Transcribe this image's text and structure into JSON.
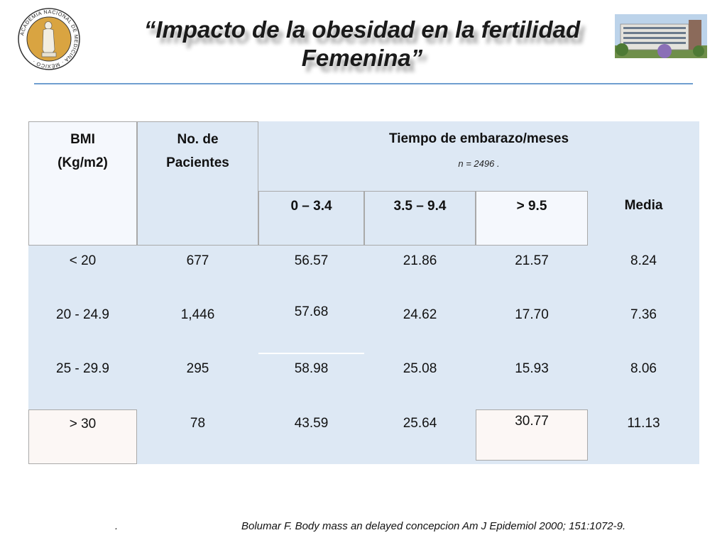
{
  "header": {
    "title_line1": "“Impacto de la obesidad en la fertilidad",
    "title_line2": "Femenina”",
    "logo_text": "ACADEMIA NACIONAL DE MEDICINA · MÉXICO ·"
  },
  "table": {
    "col_bmi": "BMI",
    "col_bmi_unit": "(Kg/m2)",
    "col_patients_1": "No. de",
    "col_patients_2": "Pacientes",
    "col_time": "Tiempo de embarazo/meses",
    "n_note": "n =  2496 .",
    "sub_1": "0 – 3.4",
    "sub_2": "3.5 – 9.4",
    "sub_3": "> 9.5",
    "sub_4": "Media",
    "rows": [
      {
        "bmi": "< 20",
        "patients": "677",
        "c1": "56.57",
        "c2": "21.86",
        "c3": "21.57",
        "mean": "8.24"
      },
      {
        "bmi": "20 - 24.9",
        "patients": "1,446",
        "c1": "57.68",
        "c2": "24.62",
        "c3": "17.70",
        "mean": "7.36"
      },
      {
        "bmi": "25 - 29.9",
        "patients": "295",
        "c1": "58.98",
        "c2": "25.08",
        "c3": "15.93",
        "mean": "8.06"
      },
      {
        "bmi": "> 30",
        "patients": "78",
        "c1": "43.59",
        "c2": "25.64",
        "c3": "30.77",
        "mean": "11.13"
      }
    ]
  },
  "footer": {
    "dot": ".",
    "citation": "Bolumar F. Body mass an delayed concepcion Am J Epidemiol 2000; 151:1072-9."
  },
  "colors": {
    "table_bg": "#dde8f4",
    "rule": "#6f9fd0",
    "logo_gold": "#d9a441"
  }
}
